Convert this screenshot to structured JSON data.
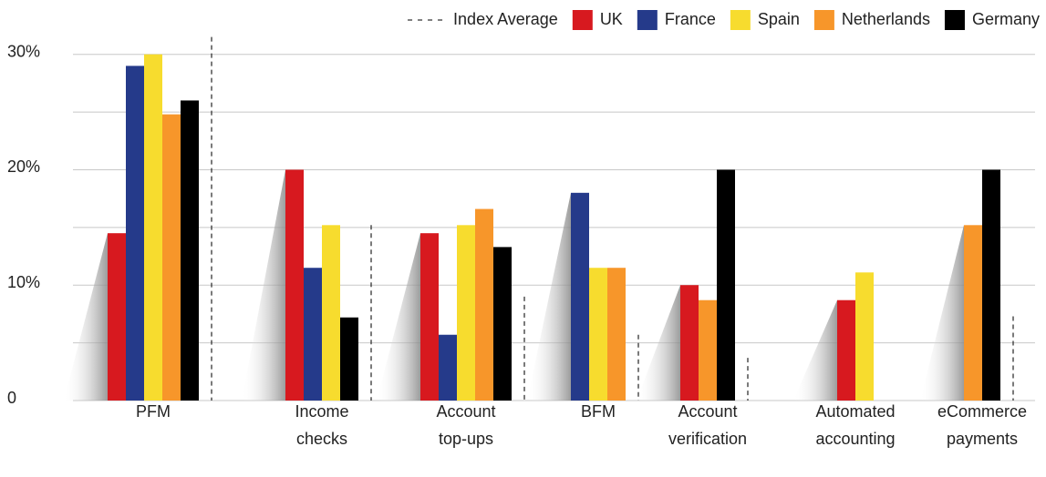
{
  "chart_data": {
    "type": "bar",
    "categories": [
      "PFM",
      "Income checks",
      "Account top-ups",
      "BFM",
      "Account verification",
      "Automated accounting",
      "eCommerce payments"
    ],
    "series": [
      {
        "name": "UK",
        "color": "#d7191f",
        "values": [
          14.5,
          20,
          14.5,
          null,
          10,
          8.7,
          null
        ]
      },
      {
        "name": "France",
        "color": "#253a8a",
        "values": [
          29,
          11.5,
          5.7,
          18,
          null,
          null,
          null
        ]
      },
      {
        "name": "Spain",
        "color": "#f7dc2e",
        "values": [
          30,
          15.2,
          15.2,
          11.5,
          null,
          11.1,
          null
        ]
      },
      {
        "name": "Netherlands",
        "color": "#f7962a",
        "values": [
          24.8,
          null,
          16.6,
          11.5,
          8.7,
          null,
          15.2
        ]
      },
      {
        "name": "Germany",
        "color": "#000000",
        "values": [
          26,
          7.2,
          13.3,
          null,
          20,
          null,
          20
        ]
      }
    ],
    "index_average": {
      "name": "Index Average",
      "color": "#333333",
      "values": [
        31.5,
        15.2,
        9,
        5.7,
        3.7,
        null,
        7.3
      ]
    },
    "ylim": [
      0,
      32.5
    ],
    "yticks": [
      {
        "value": 0,
        "label": "0"
      },
      {
        "value": 10,
        "label": "10%"
      },
      {
        "value": 20,
        "label": "20%"
      },
      {
        "value": 30,
        "label": "30%"
      }
    ],
    "minor_grid": [
      5,
      15,
      25
    ],
    "grid": true,
    "legend": "top-right"
  }
}
